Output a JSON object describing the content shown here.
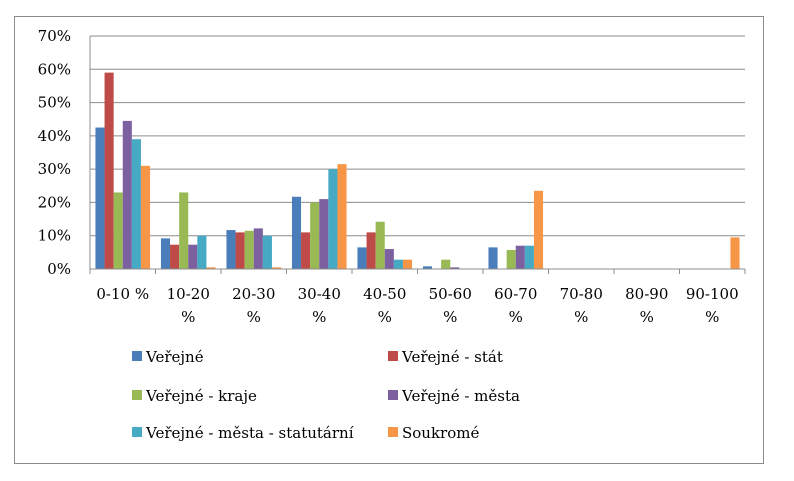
{
  "chart_data": {
    "type": "bar",
    "title": "",
    "xlabel": "",
    "ylabel": "",
    "ylim": [
      0,
      0.7
    ],
    "yticks": [
      "0%",
      "10%",
      "20%",
      "30%",
      "40%",
      "50%",
      "60%",
      "70%"
    ],
    "grid": true,
    "legend_position": "bottom",
    "categories": [
      [
        "0-10 %"
      ],
      [
        "10-20",
        "%"
      ],
      [
        "20-30",
        "%"
      ],
      [
        "30-40",
        "%"
      ],
      [
        "40-50",
        "%"
      ],
      [
        "50-60",
        "%"
      ],
      [
        "60-70",
        "%"
      ],
      [
        "70-80",
        "%"
      ],
      [
        "80-90",
        "%"
      ],
      [
        "90-100",
        "%"
      ]
    ],
    "series": [
      {
        "name": "Veřejné",
        "color": "#4a7ebb",
        "values": [
          0.425,
          0.092,
          0.117,
          0.217,
          0.065,
          0.008,
          0.065,
          0,
          0,
          0
        ]
      },
      {
        "name": "Veřejné - stát",
        "color": "#be4b48",
        "values": [
          0.59,
          0.073,
          0.11,
          0.11,
          0.11,
          0,
          0,
          0,
          0,
          0
        ]
      },
      {
        "name": "Veřejné - kraje",
        "color": "#98b954",
        "values": [
          0.23,
          0.23,
          0.115,
          0.2,
          0.142,
          0.028,
          0.057,
          0,
          0,
          0
        ]
      },
      {
        "name": "Veřejné - města",
        "color": "#7d60a0",
        "values": [
          0.445,
          0.073,
          0.122,
          0.21,
          0.06,
          0.005,
          0.07,
          0,
          0,
          0
        ]
      },
      {
        "name": "Veřejné - města - statutární",
        "color": "#46aac5",
        "values": [
          0.39,
          0.1,
          0.1,
          0.3,
          0.028,
          0,
          0.07,
          0,
          0,
          0
        ]
      },
      {
        "name": "Soukromé",
        "color": "#f79646",
        "values": [
          0.31,
          0.005,
          0.005,
          0.315,
          0.028,
          0,
          0.235,
          0,
          0,
          0.095
        ]
      }
    ]
  }
}
